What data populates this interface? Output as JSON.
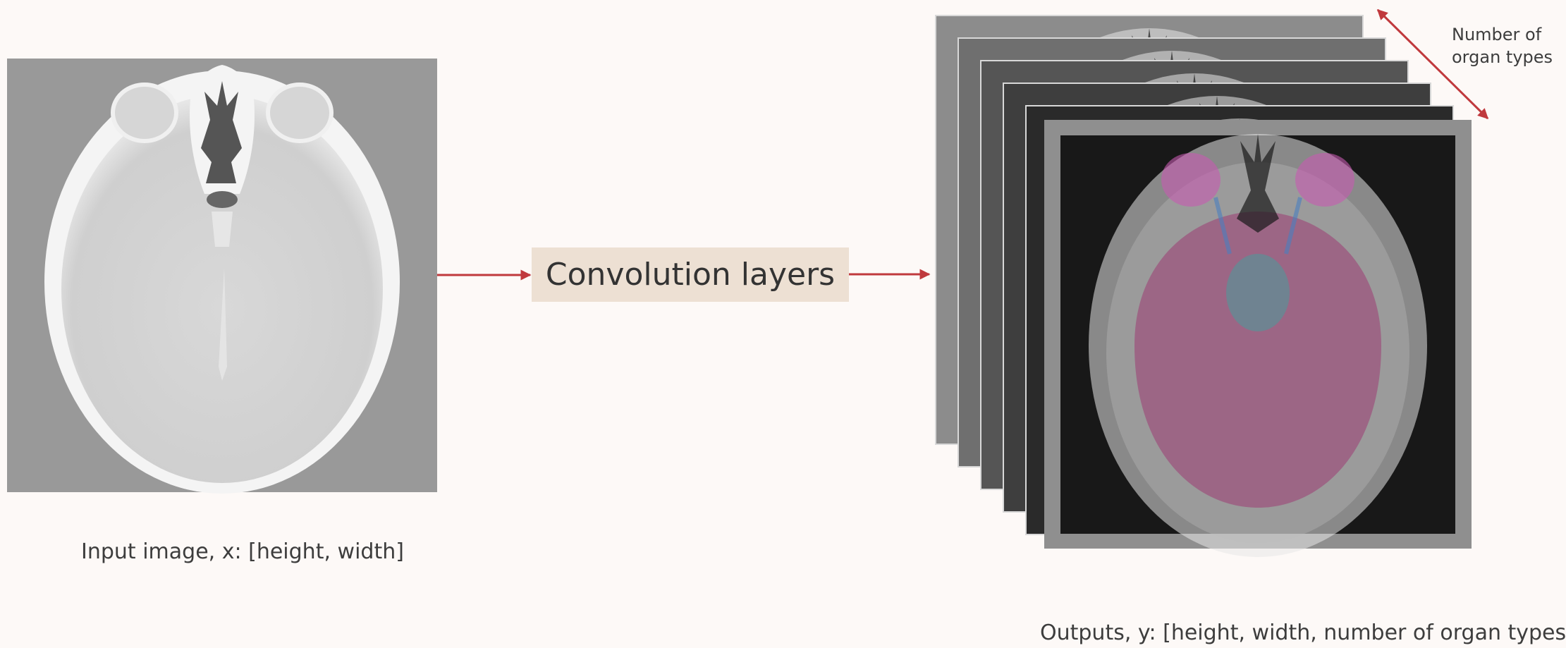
{
  "input_label": "Input image, x: [height, width]",
  "process_label": "Convolution layers",
  "output_label": "Outputs, y: [height, width, number of organ types]",
  "depth_label": "Number of organ types",
  "colors": {
    "background": "#fdf9f7",
    "arrow": "#c0393d",
    "box_fill": "#ede0d3",
    "scan_gray": "#999999",
    "organ_magenta": "#a03c78",
    "organ_teal": "#3aa6a0"
  },
  "icons": {
    "input": "ct-brain-scan-image",
    "outputs": "stacked-segmentation-maps"
  }
}
